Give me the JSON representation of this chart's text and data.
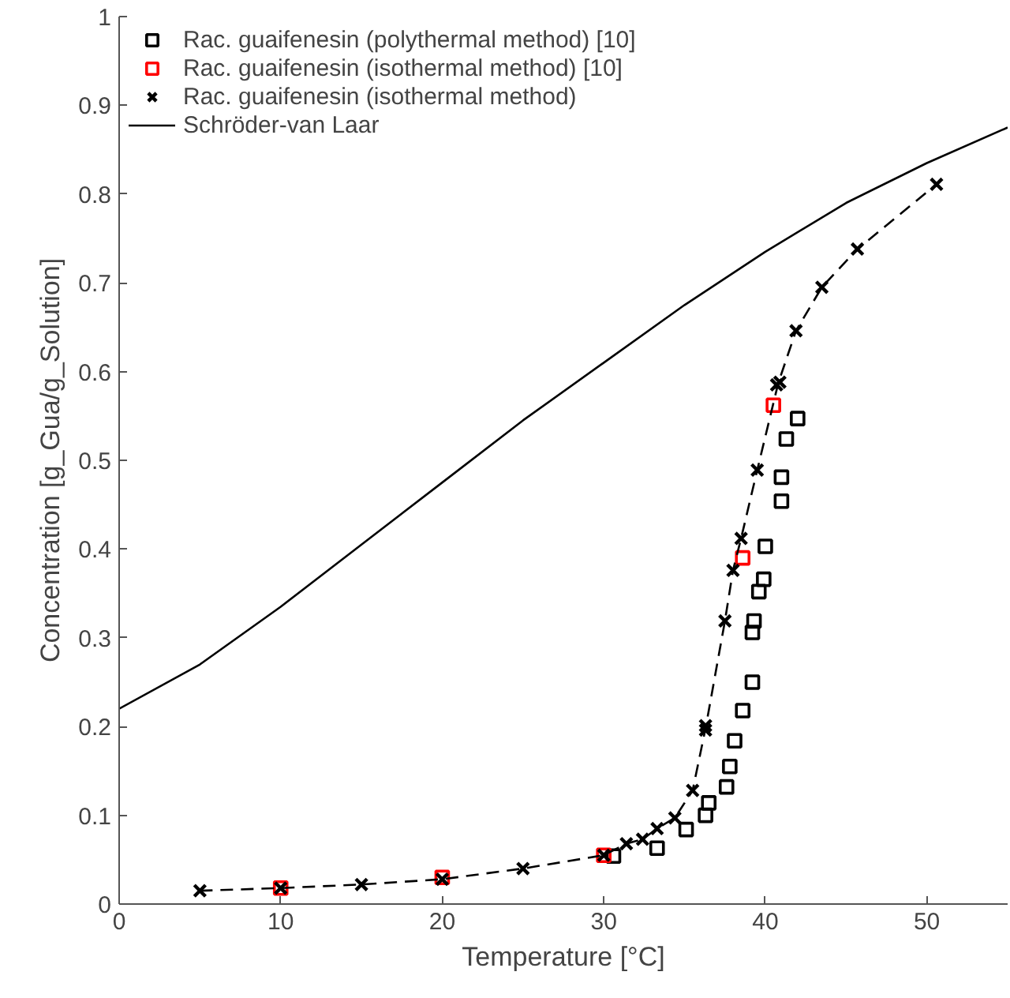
{
  "chart_data": {
    "type": "scatter",
    "xlabel": "Temperature [°C]",
    "ylabel": "Concentration [g_Gua/g_Solution]",
    "xlim": [
      0,
      55
    ],
    "ylim": [
      0,
      1
    ],
    "xticks": [
      0,
      10,
      20,
      30,
      40,
      50
    ],
    "yticks": [
      0,
      0.1,
      0.2,
      0.3,
      0.4,
      0.5,
      0.6,
      0.7,
      0.8,
      0.9,
      1
    ],
    "grid": false,
    "legend": "top left",
    "series": [
      {
        "name": "Rac. guaifenesin (polythermal method) [10]",
        "marker": "square",
        "color": "#000000",
        "x": [
          30.6,
          33.3,
          35.1,
          36.3,
          36.5,
          37.6,
          37.8,
          38.1,
          38.6,
          39.2,
          39.2,
          39.3,
          39.6,
          39.9,
          40.0,
          41.0,
          41.0,
          41.3,
          42.0
        ],
        "values": [
          0.054,
          0.063,
          0.084,
          0.1,
          0.114,
          0.132,
          0.155,
          0.184,
          0.218,
          0.25,
          0.306,
          0.319,
          0.352,
          0.366,
          0.403,
          0.454,
          0.481,
          0.524,
          0.547
        ]
      },
      {
        "name": "Rac. guaifenesin (isothermal method) [10]",
        "marker": "square",
        "color": "#ff0000",
        "x": [
          10,
          20,
          30,
          38.6,
          40.5
        ],
        "values": [
          0.018,
          0.03,
          0.055,
          0.39,
          0.562
        ]
      },
      {
        "name": "Rac. guaifenesin (isothermal method)",
        "marker": "cross",
        "color": "#000000",
        "x": [
          5,
          10,
          15,
          20,
          25,
          30,
          31.4,
          32.4,
          33.3,
          34.4,
          35.5,
          36.3,
          36.3,
          37.5,
          38.0,
          38.5,
          39.5,
          40.7,
          40.9,
          41.9,
          43.5,
          45.7,
          50.6
        ],
        "values": [
          0.015,
          0.018,
          0.022,
          0.028,
          0.04,
          0.055,
          0.068,
          0.073,
          0.085,
          0.097,
          0.128,
          0.196,
          0.201,
          0.319,
          0.376,
          0.412,
          0.489,
          0.585,
          0.588,
          0.646,
          0.695,
          0.738,
          0.811
        ]
      },
      {
        "name": "Schröder-van Laar",
        "type": "line",
        "line_style": "solid",
        "color": "#000000",
        "x": [
          0,
          5,
          10,
          15,
          20,
          25,
          30,
          35,
          40,
          45,
          50,
          55
        ],
        "values": [
          0.22,
          0.27,
          0.335,
          0.405,
          0.475,
          0.545,
          0.61,
          0.675,
          0.735,
          0.79,
          0.835,
          0.875
        ]
      },
      {
        "type": "line",
        "line_style": "dashed",
        "color": "#000000",
        "x": [
          5,
          10,
          15,
          20,
          25,
          30,
          31.4,
          32.4,
          33.3,
          34.4,
          35.5,
          36.3,
          37.5,
          38.0,
          38.5,
          39.5,
          40.8,
          41.9,
          43.5,
          45.7,
          50.6
        ],
        "values": [
          0.015,
          0.018,
          0.022,
          0.028,
          0.04,
          0.055,
          0.068,
          0.073,
          0.085,
          0.097,
          0.128,
          0.198,
          0.319,
          0.376,
          0.412,
          0.489,
          0.587,
          0.646,
          0.695,
          0.738,
          0.811
        ]
      }
    ]
  }
}
